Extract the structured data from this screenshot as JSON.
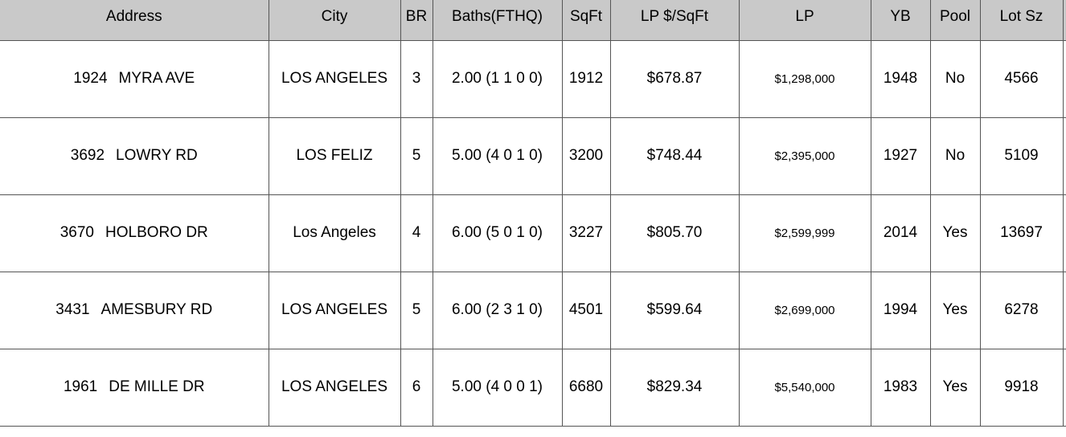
{
  "headers": {
    "address": "Address",
    "city": "City",
    "br": "BR",
    "baths": "Baths(FTHQ)",
    "sqft": "SqFt",
    "lp_per_sqft": "LP $/SqFt",
    "lp": "LP",
    "yb": "YB",
    "pool": "Pool",
    "lot_sz": "Lot Sz"
  },
  "rows": [
    {
      "address_num": "1924",
      "address_street": "MYRA AVE",
      "city": "LOS ANGELES",
      "br": "3",
      "baths": "2.00 (1 1 0 0)",
      "sqft": "1912",
      "lp_per_sqft": "$678.87",
      "lp": "$1,298,000",
      "yb": "1948",
      "pool": "No",
      "lot_sz": "4566"
    },
    {
      "address_num": "3692",
      "address_street": "LOWRY RD",
      "city": "LOS FELIZ",
      "br": "5",
      "baths": "5.00 (4 0 1 0)",
      "sqft": "3200",
      "lp_per_sqft": "$748.44",
      "lp": "$2,395,000",
      "yb": "1927",
      "pool": "No",
      "lot_sz": "5109"
    },
    {
      "address_num": "3670",
      "address_street": "HOLBORO DR",
      "city": "Los Angeles",
      "br": "4",
      "baths": "6.00 (5 0 1 0)",
      "sqft": "3227",
      "lp_per_sqft": "$805.70",
      "lp": "$2,599,999",
      "yb": "2014",
      "pool": "Yes",
      "lot_sz": "13697"
    },
    {
      "address_num": "3431",
      "address_street": "AMESBURY RD",
      "city": "LOS ANGELES",
      "br": "5",
      "baths": "6.00 (2 3 1 0)",
      "sqft": "4501",
      "lp_per_sqft": "$599.64",
      "lp": "$2,699,000",
      "yb": "1994",
      "pool": "Yes",
      "lot_sz": "6278"
    },
    {
      "address_num": "1961",
      "address_street": "DE MILLE DR",
      "city": "LOS ANGELES",
      "br": "6",
      "baths": "5.00 (4 0 0 1)",
      "sqft": "6680",
      "lp_per_sqft": "$829.34",
      "lp": "$5,540,000",
      "yb": "1983",
      "pool": "Yes",
      "lot_sz": "9918"
    }
  ]
}
